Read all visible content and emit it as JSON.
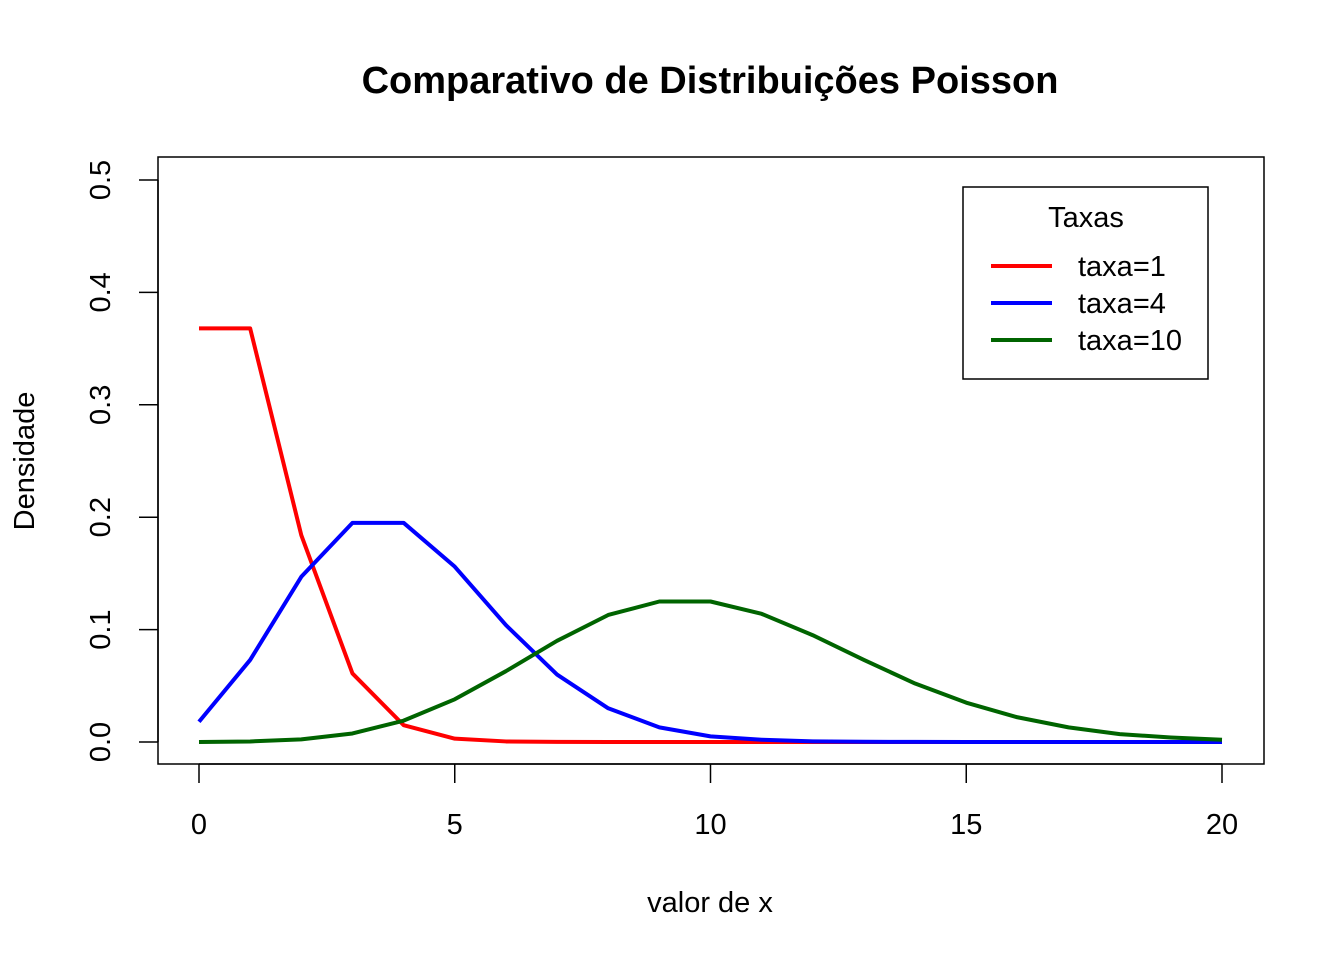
{
  "chart_data": {
    "type": "line",
    "title": "Comparativo de Distribuições Poisson",
    "xlabel": "valor de x",
    "ylabel": "Densidade",
    "xlim": [
      0,
      20
    ],
    "ylim": [
      0,
      0.5
    ],
    "x_ticks": [
      "0",
      "5",
      "10",
      "15",
      "20"
    ],
    "y_ticks": [
      "0.0",
      "0.1",
      "0.2",
      "0.3",
      "0.4",
      "0.5"
    ],
    "grid": false,
    "legend": {
      "title": "Taxas",
      "position": "top-right"
    },
    "x": [
      0,
      1,
      2,
      3,
      4,
      5,
      6,
      7,
      8,
      9,
      10,
      11,
      12,
      13,
      14,
      15,
      16,
      17,
      18,
      19,
      20
    ],
    "series": [
      {
        "name": "taxa=1",
        "color": "#ff0000",
        "values": [
          0.368,
          0.368,
          0.184,
          0.061,
          0.015,
          0.003,
          0.0005,
          0.0001,
          0.0,
          0.0,
          0.0,
          0.0,
          0.0,
          0.0,
          0.0,
          0.0,
          0.0,
          0.0,
          0.0,
          0.0,
          0.0
        ]
      },
      {
        "name": "taxa=4",
        "color": "#0000ff",
        "values": [
          0.018,
          0.073,
          0.147,
          0.195,
          0.195,
          0.156,
          0.104,
          0.06,
          0.03,
          0.013,
          0.005,
          0.002,
          0.0006,
          0.0002,
          0.0001,
          0.0,
          0.0,
          0.0,
          0.0,
          0.0,
          0.0
        ]
      },
      {
        "name": "taxa=10",
        "color": "#006400",
        "values": [
          5e-05,
          0.0005,
          0.0023,
          0.0076,
          0.019,
          0.038,
          0.063,
          0.09,
          0.113,
          0.125,
          0.125,
          0.114,
          0.095,
          0.073,
          0.052,
          0.035,
          0.022,
          0.013,
          0.007,
          0.004,
          0.002
        ]
      }
    ]
  }
}
